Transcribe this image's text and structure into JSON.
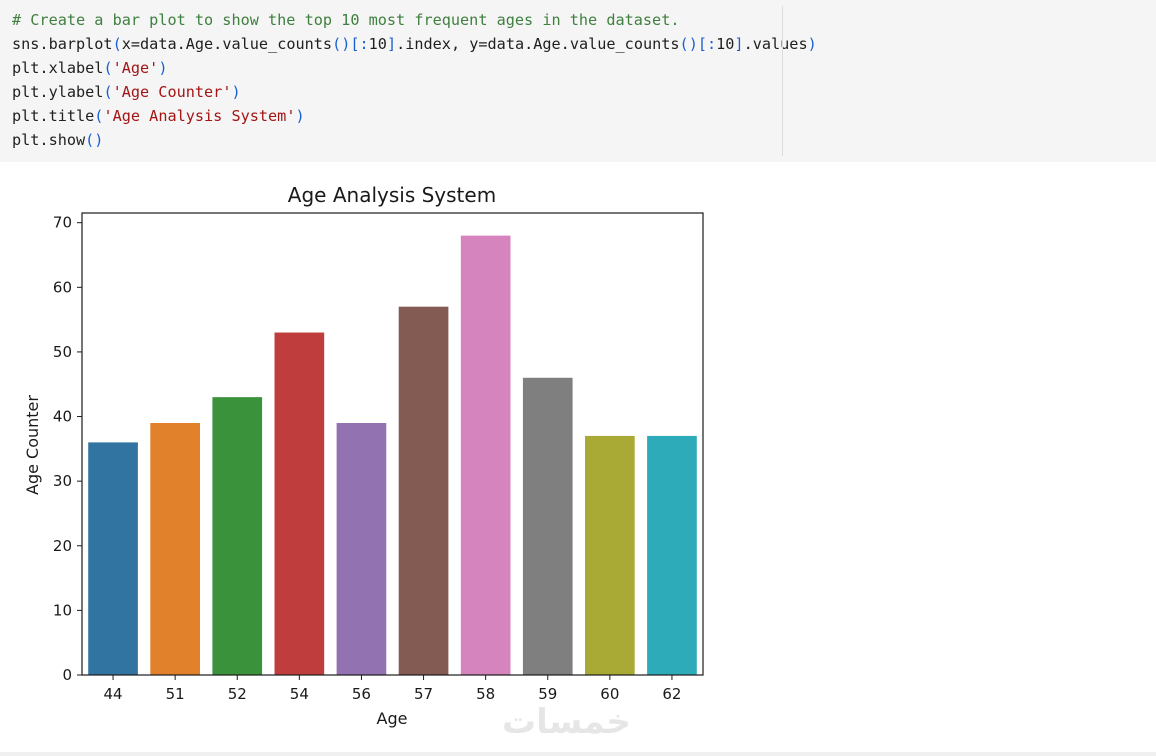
{
  "code_cell": {
    "lines": [
      [
        {
          "t": "comment",
          "v": "# Create a bar plot to show the top 10 most frequent ages in the dataset."
        }
      ],
      [
        {
          "t": "plain",
          "v": "sns.barplot"
        },
        {
          "t": "paren",
          "v": "("
        },
        {
          "t": "plain",
          "v": "x=data.Age.value_counts"
        },
        {
          "t": "paren",
          "v": "()[:"
        },
        {
          "t": "plain",
          "v": "10"
        },
        {
          "t": "paren",
          "v": "]"
        },
        {
          "t": "plain",
          "v": ".index, y=data.Age.value_counts"
        },
        {
          "t": "paren",
          "v": "()[:"
        },
        {
          "t": "plain",
          "v": "10"
        },
        {
          "t": "paren",
          "v": "]"
        },
        {
          "t": "plain",
          "v": ".values"
        },
        {
          "t": "paren",
          "v": ")"
        }
      ],
      [
        {
          "t": "plain",
          "v": "plt.xlabel"
        },
        {
          "t": "paren",
          "v": "("
        },
        {
          "t": "string",
          "v": "'Age'"
        },
        {
          "t": "paren",
          "v": ")"
        }
      ],
      [
        {
          "t": "plain",
          "v": "plt.ylabel"
        },
        {
          "t": "paren",
          "v": "("
        },
        {
          "t": "string",
          "v": "'Age Counter'"
        },
        {
          "t": "paren",
          "v": ")"
        }
      ],
      [
        {
          "t": "plain",
          "v": "plt.title"
        },
        {
          "t": "paren",
          "v": "("
        },
        {
          "t": "string",
          "v": "'Age Analysis System'"
        },
        {
          "t": "paren",
          "v": ")"
        }
      ],
      [
        {
          "t": "plain",
          "v": "plt.show"
        },
        {
          "t": "paren",
          "v": "()"
        }
      ]
    ]
  },
  "chart_data": {
    "type": "bar",
    "title": "Age Analysis System",
    "xlabel": "Age",
    "ylabel": "Age Counter",
    "categories": [
      "44",
      "51",
      "52",
      "54",
      "56",
      "57",
      "58",
      "59",
      "60",
      "62"
    ],
    "values": [
      36,
      39,
      43,
      53,
      39,
      57,
      68,
      46,
      37,
      37
    ],
    "ylim": [
      0,
      71.5
    ],
    "yticks": [
      0,
      10,
      20,
      30,
      40,
      50,
      60,
      70
    ],
    "colors": [
      "#3274a1",
      "#e1812c",
      "#3a923a",
      "#c03d3e",
      "#9372b2",
      "#845b53",
      "#d684bd",
      "#7f7f7f",
      "#a9aa35",
      "#2eabb8"
    ],
    "grid": false,
    "legend": "none"
  },
  "watermark": {
    "text": "خمسات"
  }
}
